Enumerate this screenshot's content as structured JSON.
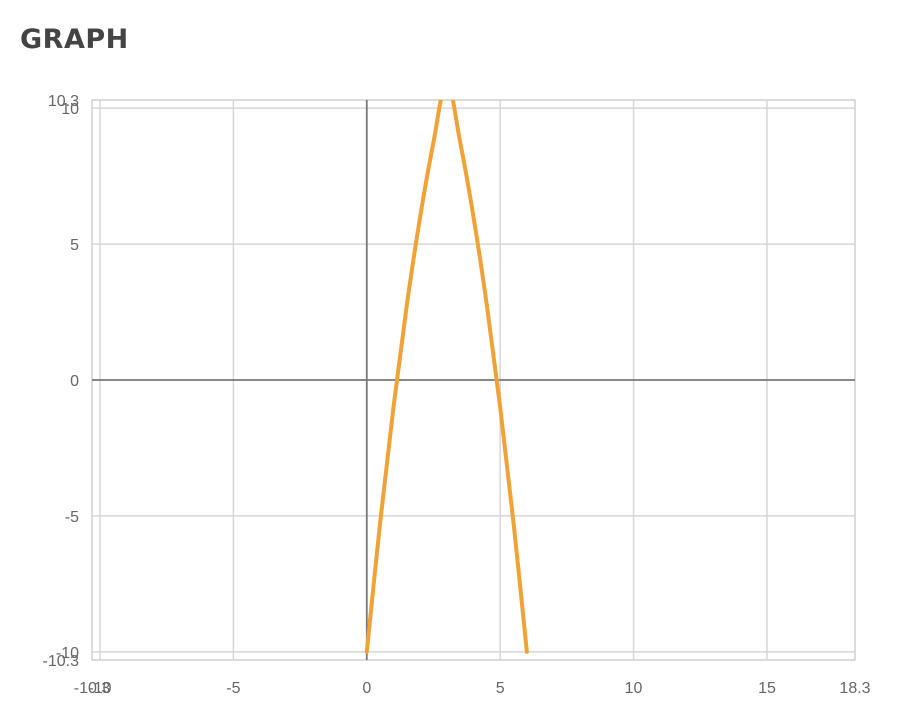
{
  "page": {
    "heading": "GRAPH"
  },
  "chart_data": {
    "type": "line",
    "title": "",
    "xlabel": "",
    "ylabel": "",
    "xlim": [
      -10.3,
      18.3
    ],
    "ylim": [
      -10.3,
      10.3
    ],
    "grid": true,
    "legend": "none",
    "x_ticks": [
      {
        "value": -10.3,
        "label": "-10.3"
      },
      {
        "value": -10,
        "label": "-10"
      },
      {
        "value": -5,
        "label": "-5"
      },
      {
        "value": 0,
        "label": "0"
      },
      {
        "value": 5,
        "label": "5"
      },
      {
        "value": 10,
        "label": "10"
      },
      {
        "value": 15,
        "label": "15"
      },
      {
        "value": 18.3,
        "label": "18.3"
      }
    ],
    "y_ticks": [
      {
        "value": 10.3,
        "label": "10.3"
      },
      {
        "value": 10,
        "label": "10"
      },
      {
        "value": 5,
        "label": "5"
      },
      {
        "value": 0,
        "label": "0"
      },
      {
        "value": -5,
        "label": "-5"
      },
      {
        "value": -10,
        "label": "-10"
      },
      {
        "value": -10.3,
        "label": "-10.3"
      }
    ],
    "series": [
      {
        "color": "#f0a236",
        "x": [
          0,
          0.5,
          1,
          1.5,
          2,
          2.5,
          3,
          3.5,
          4,
          4.5,
          5,
          5.5,
          6
        ],
        "y": [
          -10,
          -5.25,
          -1,
          2.75,
          6,
          8.75,
          11,
          8.75,
          6,
          2.75,
          -1,
          -5.25,
          -10
        ]
      }
    ],
    "colors": {
      "grid": "#d6d6d6",
      "axis": "#777777",
      "curve": "#f0a236"
    }
  }
}
